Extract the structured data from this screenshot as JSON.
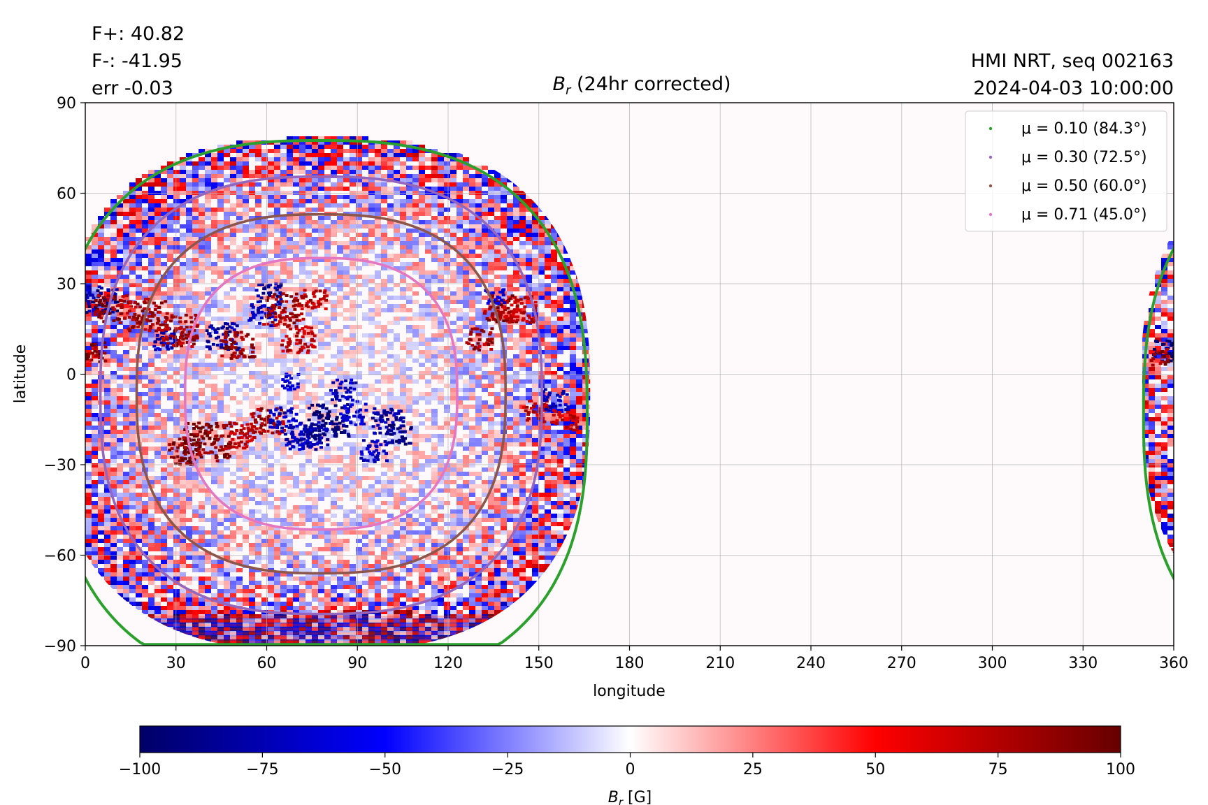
{
  "header": {
    "flux_lines": [
      "F+: 40.82",
      "F-: -41.95",
      "err -0.03"
    ],
    "source_lines": [
      "HMI NRT, seq 002163",
      "2024-04-03 10:00:00"
    ]
  },
  "chart_data": {
    "type": "heatmap",
    "title_symbol": "B",
    "title_subscript": "r",
    "title_rest": " (24hr corrected)",
    "xlabel": "longitude",
    "ylabel": "latitude",
    "xlim": [
      0,
      360
    ],
    "ylim": [
      -90,
      90
    ],
    "xticks": [
      0,
      30,
      60,
      90,
      120,
      150,
      180,
      210,
      240,
      270,
      300,
      330,
      360
    ],
    "xtick_labels": [
      "0",
      "30",
      "60",
      "90",
      "120",
      "150",
      "180",
      "210",
      "240",
      "270",
      "300",
      "330",
      "360"
    ],
    "yticks": [
      -90,
      -60,
      -30,
      0,
      30,
      60,
      90
    ],
    "ytick_labels": [
      "−90",
      "−60",
      "−30",
      "0",
      "30",
      "60",
      "90"
    ],
    "grid": true,
    "legend_position": "top-right",
    "disk": {
      "center_lon": 78,
      "center_lat": -13,
      "lon_half_width": 88,
      "limb_south_lat": -90,
      "limb_north_lat": 77.5
    },
    "contours": [
      {
        "label": "μ = 0.10 (84.3°)",
        "color": "#2ca02c",
        "center": [
          78,
          -13
        ],
        "half_width": [
          88,
          90.5
        ],
        "wrap": true
      },
      {
        "label": "μ = 0.30 (72.5°)",
        "color": "#9467bd",
        "center": [
          78,
          -7
        ],
        "half_width": [
          73,
          72.5
        ],
        "wrap": false
      },
      {
        "label": "μ = 0.50 (60.0°)",
        "color": "#8c564b",
        "center": [
          78,
          -6.5
        ],
        "half_width": [
          61,
          59.5
        ],
        "wrap": false
      },
      {
        "label": "μ = 0.71 (45.0°)",
        "color": "#e377c2",
        "center": [
          78,
          -6.5
        ],
        "half_width": [
          45,
          45
        ],
        "wrap": false
      }
    ],
    "active_regions": [
      {
        "lon": 5,
        "lat": 25,
        "polarity": "negative",
        "strength": 0.8,
        "size": 5
      },
      {
        "lon": 8,
        "lat": 22,
        "polarity": "positive",
        "strength": 0.8,
        "size": 5
      },
      {
        "lon": 2,
        "lat": 8,
        "polarity": "positive",
        "strength": 0.9,
        "size": 4
      },
      {
        "lon": 20,
        "lat": 20,
        "polarity": "positive",
        "strength": 0.7,
        "size": 6
      },
      {
        "lon": 26,
        "lat": 12,
        "polarity": "negative",
        "strength": 0.6,
        "size": 4
      },
      {
        "lon": 30,
        "lat": 15,
        "polarity": "positive",
        "strength": 0.7,
        "size": 6
      },
      {
        "lon": 45,
        "lat": 13,
        "polarity": "negative",
        "strength": 0.7,
        "size": 5
      },
      {
        "lon": 50,
        "lat": 10,
        "polarity": "positive",
        "strength": 0.8,
        "size": 5
      },
      {
        "lon": 58,
        "lat": 20,
        "polarity": "negative",
        "strength": 0.6,
        "size": 4
      },
      {
        "lon": 60,
        "lat": 27,
        "polarity": "negative",
        "strength": 0.7,
        "size": 4
      },
      {
        "lon": 65,
        "lat": 22,
        "polarity": "positive",
        "strength": 0.7,
        "size": 6
      },
      {
        "lon": 70,
        "lat": 12,
        "polarity": "positive",
        "strength": 0.6,
        "size": 5
      },
      {
        "lon": 75,
        "lat": 25,
        "polarity": "positive",
        "strength": 0.6,
        "size": 4
      },
      {
        "lon": 40,
        "lat": -22,
        "polarity": "positive",
        "strength": 0.9,
        "size": 7
      },
      {
        "lon": 32,
        "lat": -25,
        "polarity": "positive",
        "strength": 0.8,
        "size": 5
      },
      {
        "lon": 50,
        "lat": -20,
        "polarity": "positive",
        "strength": 0.6,
        "size": 5
      },
      {
        "lon": 60,
        "lat": -15,
        "polarity": "positive",
        "strength": 0.7,
        "size": 5
      },
      {
        "lon": 65,
        "lat": -14,
        "polarity": "negative",
        "strength": 0.6,
        "size": 4
      },
      {
        "lon": 70,
        "lat": -20,
        "polarity": "negative",
        "strength": 0.6,
        "size": 5
      },
      {
        "lon": 80,
        "lat": -15,
        "polarity": "negative",
        "strength": 1.0,
        "size": 6
      },
      {
        "lon": 75,
        "lat": -20,
        "polarity": "negative",
        "strength": 0.7,
        "size": 5
      },
      {
        "lon": 85,
        "lat": -5,
        "polarity": "negative",
        "strength": 0.6,
        "size": 4
      },
      {
        "lon": 68,
        "lat": -2,
        "polarity": "negative",
        "strength": 0.5,
        "size": 3
      },
      {
        "lon": 100,
        "lat": -15,
        "polarity": "negative",
        "strength": 0.7,
        "size": 5
      },
      {
        "lon": 103,
        "lat": -20,
        "polarity": "negative",
        "strength": 0.9,
        "size": 4
      },
      {
        "lon": 95,
        "lat": -25,
        "polarity": "negative",
        "strength": 0.6,
        "size": 4
      },
      {
        "lon": 88,
        "lat": -13,
        "polarity": "negative",
        "strength": 0.5,
        "size": 4
      },
      {
        "lon": 130,
        "lat": 12,
        "polarity": "positive",
        "strength": 0.7,
        "size": 4
      },
      {
        "lon": 137,
        "lat": 22,
        "polarity": "positive",
        "strength": 0.8,
        "size": 5
      },
      {
        "lon": 143,
        "lat": 22,
        "polarity": "positive",
        "strength": 0.6,
        "size": 5
      },
      {
        "lon": 135,
        "lat": 26,
        "polarity": "negative",
        "strength": 0.5,
        "size": 3
      },
      {
        "lon": 148,
        "lat": -12,
        "polarity": "positive",
        "strength": 0.6,
        "size": 4
      },
      {
        "lon": 155,
        "lat": -8,
        "polarity": "negative",
        "strength": 0.6,
        "size": 4
      },
      {
        "lon": 158,
        "lat": -15,
        "polarity": "positive",
        "strength": 0.6,
        "size": 4
      },
      {
        "lon": 357,
        "lat": 8,
        "polarity": "negative",
        "strength": 1.0,
        "size": 4
      },
      {
        "lon": 355,
        "lat": 6,
        "polarity": "positive",
        "strength": 0.8,
        "size": 3
      },
      {
        "lon": 355,
        "lat": -60,
        "polarity": "positive",
        "strength": 0.7,
        "size": 5
      }
    ]
  },
  "colorbar": {
    "min": -100,
    "max": 100,
    "ticks": [
      -100,
      -75,
      -50,
      -25,
      0,
      25,
      50,
      75,
      100
    ],
    "tick_labels": [
      "−100",
      "−75",
      "−50",
      "−25",
      "0",
      "25",
      "50",
      "75",
      "100"
    ],
    "label_symbol": "B",
    "label_subscript": "r",
    "label_unit": " [G]",
    "stops": [
      "#000066",
      "#0000ff",
      "#ffffff",
      "#ff0000",
      "#660000"
    ]
  }
}
